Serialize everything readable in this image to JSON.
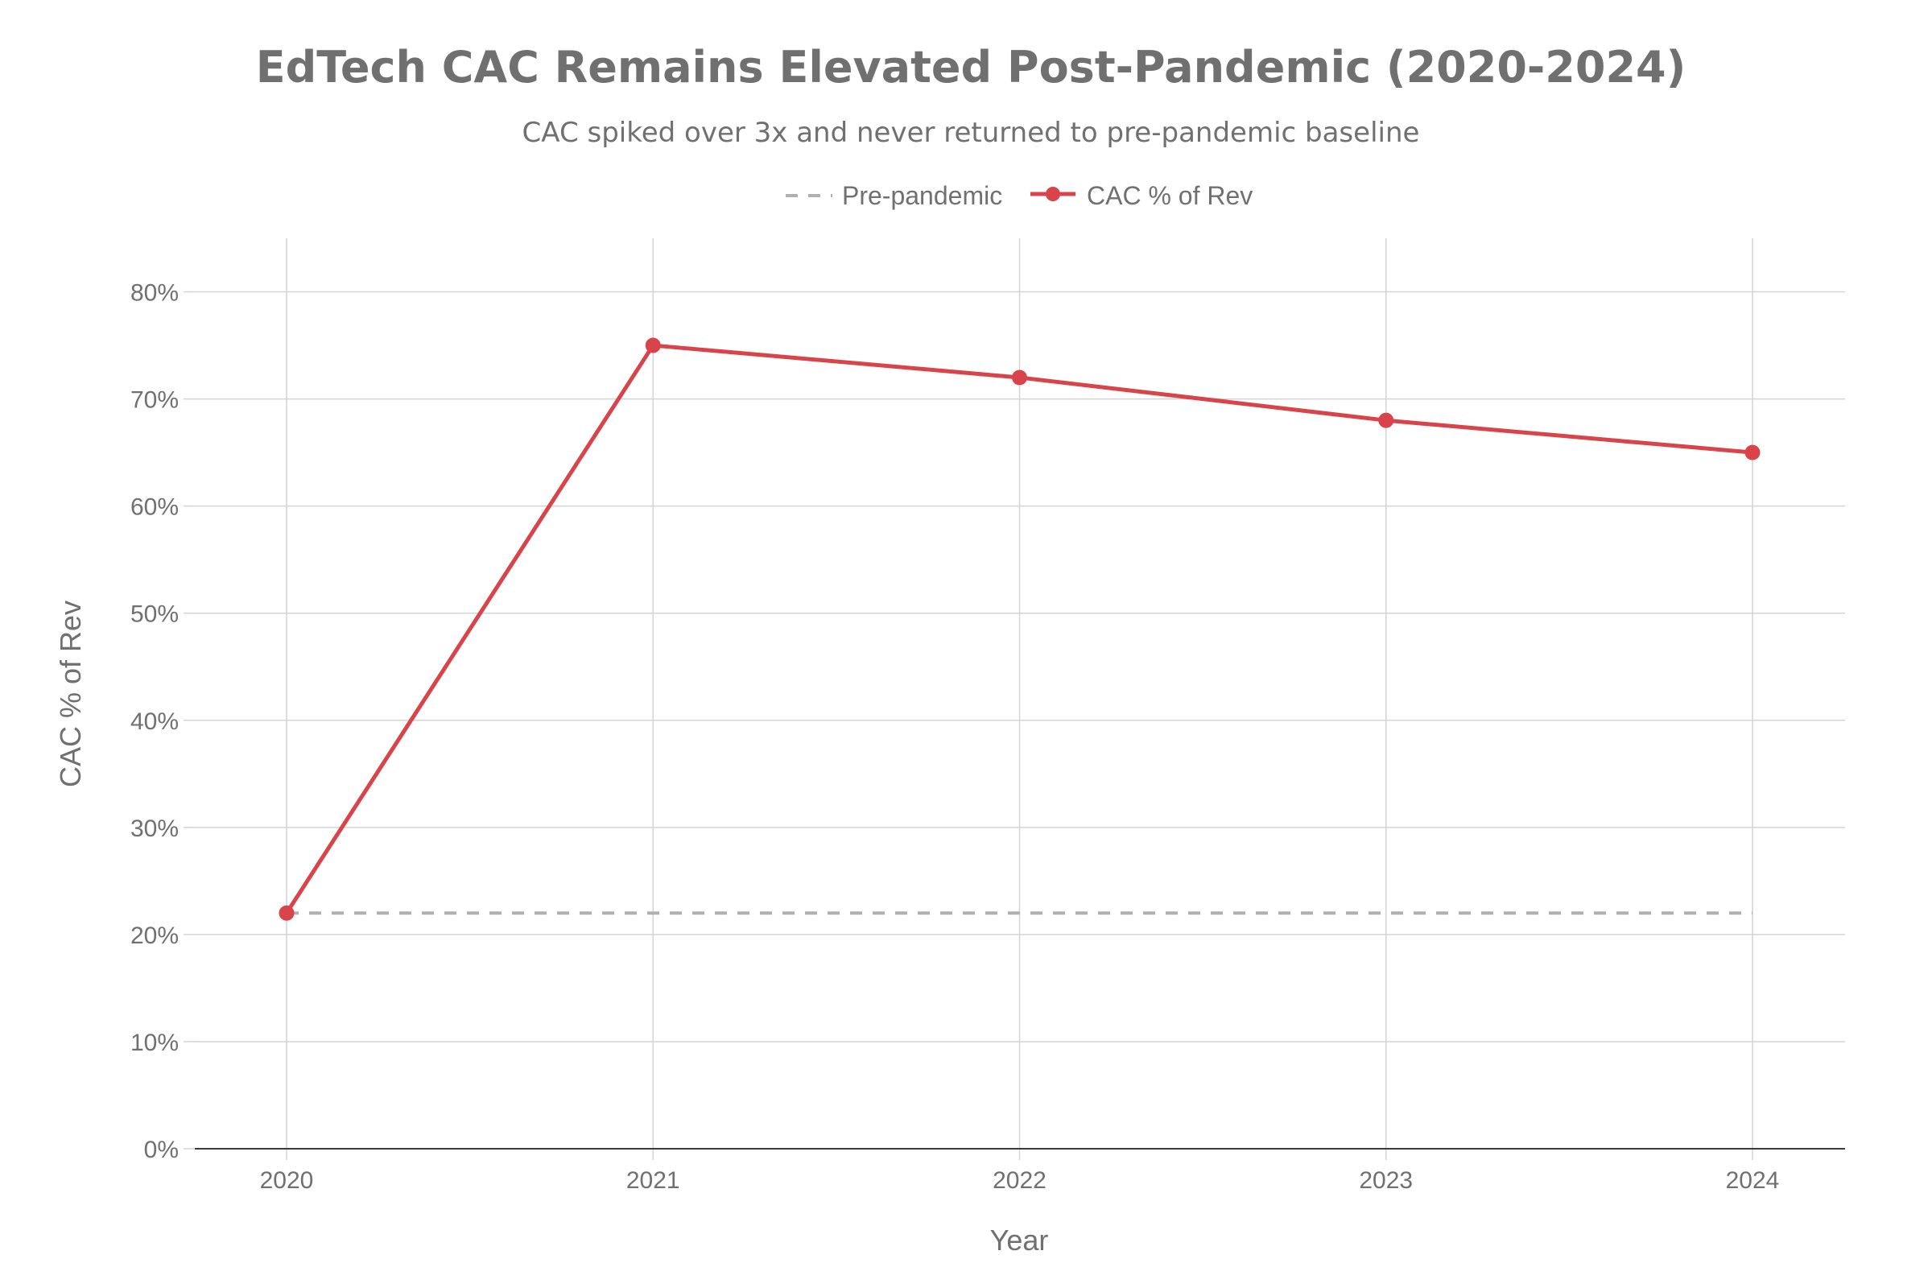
{
  "chart_data": {
    "type": "line",
    "title": "EdTech CAC Remains Elevated Post-Pandemic (2020-2024)",
    "subtitle": "CAC spiked over 3x and never returned to pre-pandemic baseline",
    "xlabel": "Year",
    "ylabel": "CAC % of Rev",
    "categories": [
      "2020",
      "2021",
      "2022",
      "2023",
      "2024"
    ],
    "y_ticks": [
      "0%",
      "10%",
      "20%",
      "30%",
      "40%",
      "50%",
      "60%",
      "70%",
      "80%"
    ],
    "ylim": [
      0,
      85
    ],
    "grid": true,
    "legend_position": "top-center",
    "series": [
      {
        "name": "Pre-pandemic",
        "values": [
          22,
          22,
          22,
          22,
          22
        ],
        "color": "#b0b0b0",
        "style": "dashed"
      },
      {
        "name": "CAC % of Rev",
        "values": [
          22,
          75,
          72,
          68,
          65
        ],
        "color": "#d9444a",
        "style": "solid-markers"
      }
    ]
  }
}
